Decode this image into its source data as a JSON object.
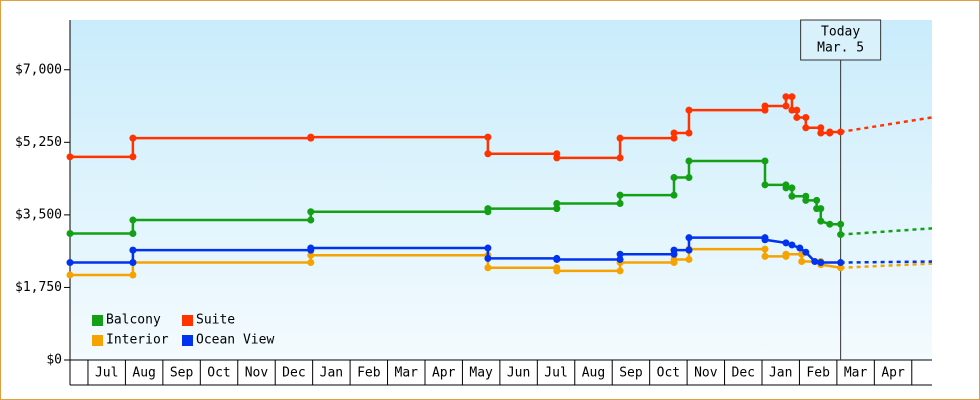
{
  "chart_data": {
    "type": "step-line",
    "categories": [
      "Jul",
      "Aug",
      "Sep",
      "Oct",
      "Nov",
      "Dec",
      "Jan",
      "Feb",
      "Mar",
      "Apr",
      "May",
      "Jun",
      "Jul",
      "Aug",
      "Sep",
      "Oct",
      "Nov",
      "Dec",
      "Jan",
      "Feb",
      "Mar",
      "Apr"
    ],
    "xlim": [
      -0.48,
      22.54
    ],
    "ylim": [
      0,
      8200
    ],
    "yticks": [
      {
        "value": 0,
        "label": "$0"
      },
      {
        "value": 1750,
        "label": "$1,750"
      },
      {
        "value": 3500,
        "label": "$3,500"
      },
      {
        "value": 5250,
        "label": "$5,250"
      },
      {
        "value": 7000,
        "label": "$7,000"
      }
    ],
    "legend": "lower left",
    "annotations": [
      {
        "x": 20.1,
        "lines": [
          "Today",
          "Mar. 5"
        ]
      }
    ],
    "series": [
      {
        "name": "Balcony",
        "color": "#14a014",
        "x": [
          -0.48,
          1.2,
          1.2,
          5.95,
          5.95,
          10.68,
          10.68,
          12.52,
          12.52,
          14.21,
          14.21,
          15.65,
          15.65,
          16.05,
          16.05,
          18.08,
          18.08,
          18.64,
          18.64,
          18.8,
          18.8,
          19.17,
          19.17,
          19.46,
          19.46,
          19.57,
          19.57,
          19.81,
          20.1,
          20.1
        ],
        "values": [
          3050,
          3050,
          3375,
          3375,
          3575,
          3575,
          3650,
          3650,
          3775,
          3775,
          3975,
          3975,
          4400,
          4400,
          4800,
          4800,
          4225,
          4225,
          4150,
          4150,
          3950,
          3950,
          3850,
          3850,
          3650,
          3650,
          3350,
          3275,
          3275,
          3025
        ],
        "projection": {
          "x": [
            20.1,
            22.54
          ],
          "values": [
            3025,
            3175
          ]
        }
      },
      {
        "name": "Suite",
        "color": "#ff3300",
        "x": [
          -0.48,
          1.2,
          1.2,
          5.95,
          5.95,
          10.68,
          10.68,
          12.52,
          12.52,
          14.21,
          14.21,
          15.65,
          15.65,
          16.05,
          16.05,
          18.08,
          18.08,
          18.64,
          18.64,
          18.8,
          18.8,
          18.93,
          18.93,
          19.17,
          19.17,
          19.57,
          19.57,
          19.81,
          19.81,
          20.1
        ],
        "values": [
          4900,
          4900,
          5350,
          5350,
          5375,
          5375,
          4975,
          4975,
          4875,
          4875,
          5350,
          5350,
          5475,
          5475,
          6025,
          6025,
          6125,
          6125,
          6350,
          6350,
          6025,
          6025,
          5850,
          5850,
          5600,
          5600,
          5475,
          5475,
          5500,
          5500
        ],
        "projection": {
          "x": [
            20.1,
            22.54
          ],
          "values": [
            5500,
            5850
          ]
        }
      },
      {
        "name": "Interior",
        "color": "#f5a300",
        "x": [
          -0.48,
          1.2,
          1.2,
          5.95,
          5.95,
          10.68,
          10.68,
          12.52,
          12.52,
          14.21,
          14.21,
          15.65,
          15.65,
          16.05,
          16.05,
          18.08,
          18.08,
          18.64,
          18.64,
          19.06,
          19.06,
          19.57,
          19.57,
          20.1
        ],
        "values": [
          2050,
          2050,
          2350,
          2350,
          2525,
          2525,
          2225,
          2225,
          2150,
          2150,
          2350,
          2350,
          2425,
          2425,
          2675,
          2675,
          2500,
          2500,
          2550,
          2550,
          2375,
          2375,
          2300,
          2225
        ],
        "projection": {
          "x": [
            20.1,
            22.54
          ],
          "values": [
            2225,
            2325
          ]
        }
      },
      {
        "name": "Ocean View",
        "color": "#0033ee",
        "x": [
          -0.48,
          1.2,
          1.2,
          5.95,
          5.95,
          10.68,
          10.68,
          12.52,
          12.52,
          14.21,
          14.21,
          15.65,
          15.65,
          16.05,
          16.05,
          18.08,
          18.08,
          18.64,
          18.8,
          19.01,
          19.17,
          19.41,
          19.57,
          20.1
        ],
        "values": [
          2350,
          2350,
          2650,
          2650,
          2700,
          2700,
          2450,
          2450,
          2425,
          2425,
          2550,
          2550,
          2650,
          2650,
          2950,
          2950,
          2900,
          2825,
          2775,
          2700,
          2600,
          2375,
          2350,
          2350
        ],
        "projection": {
          "x": [
            20.1,
            22.54
          ],
          "values": [
            2350,
            2375
          ]
        }
      }
    ]
  }
}
